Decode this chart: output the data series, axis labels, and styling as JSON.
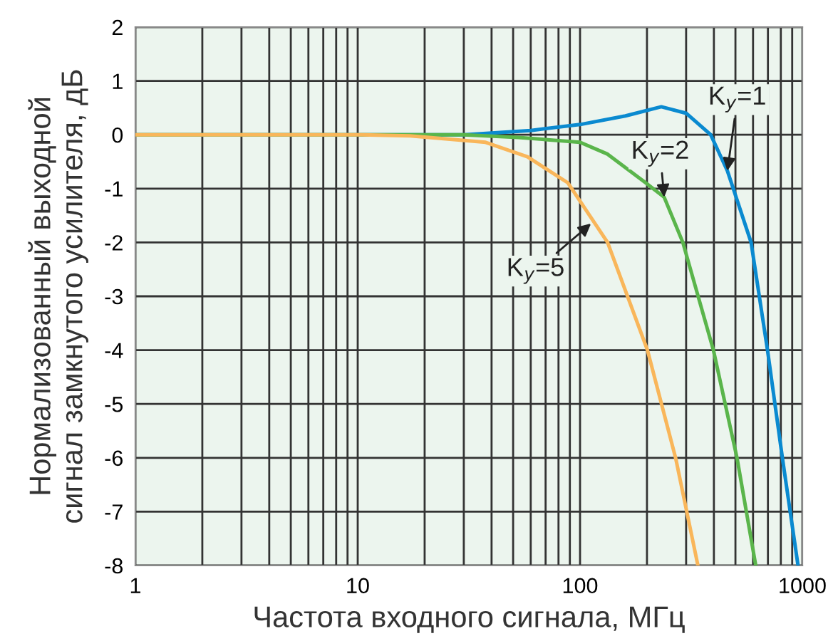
{
  "chart_data": {
    "type": "line",
    "xlabel": "Частота входного сигнала, МГц",
    "ylabel": "Нормализованный выходной\nсигнал замкнутого усилителя, дБ",
    "log": "x",
    "xlim": [
      1,
      1000
    ],
    "ylim": [
      -8,
      2
    ],
    "xticks": [
      1,
      {
        "value": 2,
        "label": null
      },
      {
        "value": 3,
        "label": null
      },
      {
        "value": 4,
        "label": null
      },
      {
        "value": 5,
        "label": null
      },
      {
        "value": 6,
        "label": null
      },
      {
        "value": 7,
        "label": null
      },
      {
        "value": 8,
        "label": null
      },
      {
        "value": 9,
        "label": null
      },
      10,
      {
        "value": 20,
        "label": null
      },
      {
        "value": 30,
        "label": null
      },
      {
        "value": 40,
        "label": null
      },
      {
        "value": 50,
        "label": null
      },
      {
        "value": 60,
        "label": null
      },
      {
        "value": 70,
        "label": null
      },
      {
        "value": 80,
        "label": null
      },
      {
        "value": 90,
        "label": null
      },
      100,
      {
        "value": 200,
        "label": null
      },
      {
        "value": 300,
        "label": null
      },
      {
        "value": 400,
        "label": null
      },
      {
        "value": 500,
        "label": null
      },
      {
        "value": 600,
        "label": null
      },
      {
        "value": 700,
        "label": null
      },
      {
        "value": 800,
        "label": null
      },
      {
        "value": 900,
        "label": null
      },
      1000
    ],
    "yticks": [
      2,
      1,
      0,
      -1,
      -2,
      -3,
      -4,
      -5,
      -6,
      -7,
      -8
    ],
    "grid": true,
    "marker": "none",
    "line_style": "solid",
    "series": [
      {
        "color": "#0a8ad0",
        "x": [
          1,
          10,
          30,
          60,
          100,
          160,
          232,
          300,
          387,
          460,
          588,
          697,
          813,
          956
        ],
        "values": [
          0,
          0,
          0,
          0.08,
          0.19,
          0.35,
          0.52,
          0.4,
          0,
          -0.67,
          -2.0,
          -4.0,
          -6.0,
          -8.0
        ]
      },
      {
        "color": "#5ab54b",
        "x": [
          1,
          10,
          30,
          52.8,
          100,
          133,
          197,
          239,
          290,
          398,
          508,
          617
        ],
        "values": [
          0,
          0,
          0,
          -0.05,
          -0.14,
          -0.36,
          -0.89,
          -1.16,
          -2.0,
          -4.0,
          -6.0,
          -8.0
        ]
      },
      {
        "color": "#f9b65a",
        "x": [
          1,
          10,
          17.2,
          37.6,
          58,
          88,
          133,
          201,
          269,
          339
        ],
        "values": [
          0,
          0,
          -0.02,
          -0.14,
          -0.41,
          -0.89,
          -2.0,
          -4.0,
          -6.0,
          -8.0
        ]
      }
    ],
    "annotations": [
      {
        "text": "K$_{y}$=1",
        "x": 460,
        "y": -0.67
      },
      {
        "text": "K$_{y}$=2",
        "x": 239,
        "y": -1.16
      },
      {
        "text": "K$_{y}$=5",
        "x": 112,
        "y": -1.65
      }
    ]
  }
}
